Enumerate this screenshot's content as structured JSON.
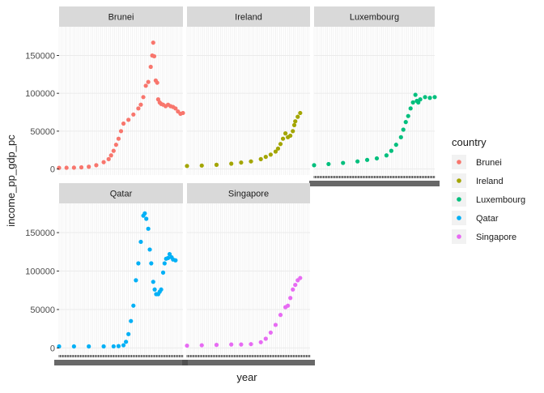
{
  "chart_data": {
    "type": "scatter",
    "xlabel": "year",
    "ylabel": "income_pp_gdp_pc",
    "yticks": [
      0,
      50000,
      100000,
      150000
    ],
    "ytick_labels": [
      "0",
      "50000",
      "100000",
      "150000"
    ],
    "ylim": [
      -8000,
      188000
    ],
    "xlim": [
      1800,
      2050
    ],
    "facet_ncol": 3,
    "grid": true,
    "legend": {
      "title": "country",
      "position": "right",
      "entries": [
        "Brunei",
        "Ireland",
        "Luxembourg",
        "Qatar",
        "Singapore"
      ]
    },
    "colors": {
      "Brunei": "#F8766D",
      "Ireland": "#A3A500",
      "Luxembourg": "#00BF7D",
      "Qatar": "#00B0F6",
      "Singapore": "#E76BF3",
      "strip": "#d9d9d9",
      "panel": "#ffffff",
      "grid": "#ebebeb"
    },
    "series": [
      {
        "name": "Brunei",
        "points": [
          [
            1800,
            1500
          ],
          [
            1815,
            1600
          ],
          [
            1830,
            1800
          ],
          [
            1845,
            2200
          ],
          [
            1860,
            3000
          ],
          [
            1875,
            5000
          ],
          [
            1890,
            9000
          ],
          [
            1900,
            13000
          ],
          [
            1905,
            18000
          ],
          [
            1910,
            24000
          ],
          [
            1915,
            32000
          ],
          [
            1920,
            40000
          ],
          [
            1925,
            50000
          ],
          [
            1930,
            60000
          ],
          [
            1940,
            65000
          ],
          [
            1950,
            72000
          ],
          [
            1960,
            80000
          ],
          [
            1965,
            85000
          ],
          [
            1970,
            95000
          ],
          [
            1975,
            110000
          ],
          [
            1980,
            115000
          ],
          [
            1985,
            135000
          ],
          [
            1988,
            150000
          ],
          [
            1990,
            167000
          ],
          [
            1992,
            149000
          ],
          [
            1995,
            117000
          ],
          [
            1998,
            114000
          ],
          [
            2000,
            92000
          ],
          [
            2003,
            88000
          ],
          [
            2006,
            86000
          ],
          [
            2010,
            85000
          ],
          [
            2015,
            83000
          ],
          [
            2020,
            85000
          ],
          [
            2025,
            83000
          ],
          [
            2030,
            82000
          ],
          [
            2035,
            80000
          ],
          [
            2040,
            76000
          ],
          [
            2045,
            73000
          ],
          [
            2050,
            74000
          ]
        ]
      },
      {
        "name": "Ireland",
        "points": [
          [
            1800,
            4000
          ],
          [
            1830,
            4500
          ],
          [
            1860,
            5500
          ],
          [
            1890,
            7000
          ],
          [
            1910,
            8500
          ],
          [
            1930,
            10000
          ],
          [
            1950,
            13000
          ],
          [
            1960,
            16000
          ],
          [
            1970,
            19000
          ],
          [
            1980,
            23000
          ],
          [
            1985,
            27000
          ],
          [
            1990,
            33000
          ],
          [
            1995,
            40000
          ],
          [
            2000,
            47000
          ],
          [
            2005,
            42000
          ],
          [
            2010,
            44000
          ],
          [
            2015,
            50000
          ],
          [
            2018,
            58000
          ],
          [
            2020,
            63000
          ],
          [
            2025,
            69000
          ],
          [
            2030,
            74000
          ]
        ]
      },
      {
        "name": "Luxembourg",
        "points": [
          [
            1800,
            5000
          ],
          [
            1830,
            6500
          ],
          [
            1860,
            8000
          ],
          [
            1890,
            10000
          ],
          [
            1910,
            12000
          ],
          [
            1930,
            14000
          ],
          [
            1950,
            18000
          ],
          [
            1960,
            24000
          ],
          [
            1970,
            32000
          ],
          [
            1980,
            42000
          ],
          [
            1985,
            52000
          ],
          [
            1990,
            62000
          ],
          [
            1995,
            70000
          ],
          [
            2000,
            80000
          ],
          [
            2005,
            88000
          ],
          [
            2010,
            98000
          ],
          [
            2013,
            90000
          ],
          [
            2016,
            88000
          ],
          [
            2020,
            92000
          ],
          [
            2030,
            95000
          ],
          [
            2040,
            94000
          ],
          [
            2050,
            95000
          ]
        ]
      },
      {
        "name": "Qatar",
        "points": [
          [
            1800,
            2000
          ],
          [
            1830,
            2000
          ],
          [
            1860,
            2000
          ],
          [
            1890,
            2000
          ],
          [
            1910,
            2100
          ],
          [
            1920,
            2400
          ],
          [
            1930,
            3500
          ],
          [
            1935,
            8000
          ],
          [
            1940,
            18000
          ],
          [
            1945,
            35000
          ],
          [
            1950,
            55000
          ],
          [
            1955,
            88000
          ],
          [
            1960,
            110000
          ],
          [
            1965,
            138000
          ],
          [
            1970,
            172000
          ],
          [
            1973,
            175000
          ],
          [
            1976,
            168000
          ],
          [
            1980,
            155000
          ],
          [
            1983,
            128000
          ],
          [
            1986,
            110000
          ],
          [
            1990,
            86000
          ],
          [
            1993,
            76000
          ],
          [
            1996,
            70000
          ],
          [
            2000,
            70000
          ],
          [
            2003,
            73000
          ],
          [
            2006,
            76000
          ],
          [
            2010,
            98000
          ],
          [
            2013,
            110000
          ],
          [
            2016,
            116000
          ],
          [
            2020,
            117000
          ],
          [
            2023,
            122000
          ],
          [
            2027,
            118000
          ],
          [
            2030,
            115000
          ],
          [
            2035,
            114000
          ]
        ]
      },
      {
        "name": "Singapore",
        "points": [
          [
            1800,
            3000
          ],
          [
            1830,
            3500
          ],
          [
            1860,
            4000
          ],
          [
            1890,
            4500
          ],
          [
            1910,
            4500
          ],
          [
            1930,
            5000
          ],
          [
            1950,
            7500
          ],
          [
            1960,
            12000
          ],
          [
            1970,
            20000
          ],
          [
            1980,
            30000
          ],
          [
            1990,
            43000
          ],
          [
            2000,
            53000
          ],
          [
            2005,
            55000
          ],
          [
            2010,
            65000
          ],
          [
            2015,
            76000
          ],
          [
            2020,
            82000
          ],
          [
            2025,
            88000
          ],
          [
            2030,
            91000
          ]
        ]
      }
    ]
  }
}
